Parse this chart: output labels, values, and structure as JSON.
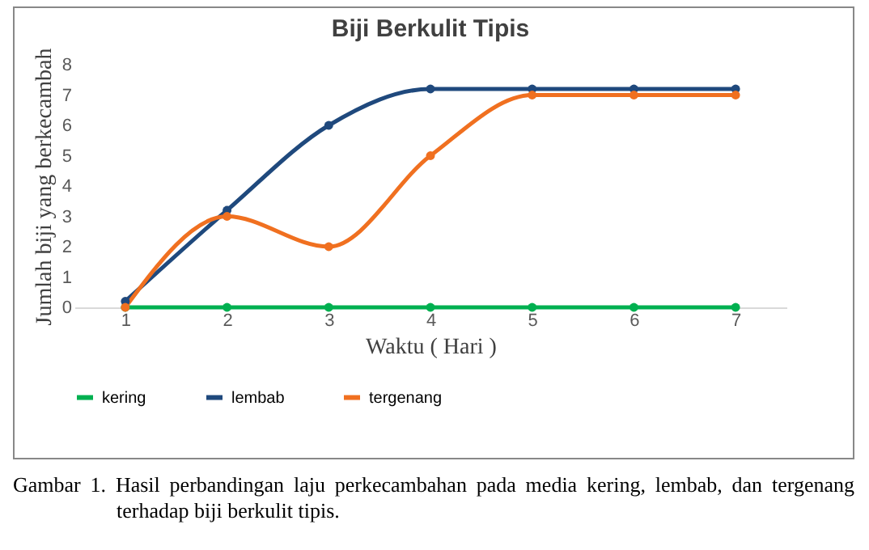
{
  "chart_data": {
    "type": "line",
    "title": "Biji Berkulit Tipis",
    "xlabel": "Waktu ( Hari )",
    "ylabel": "Jumlah biji yang berkecambah",
    "categories": [
      "1",
      "2",
      "3",
      "4",
      "5",
      "6",
      "7"
    ],
    "series": [
      {
        "name": "kering",
        "color": "#00b050",
        "values": [
          0,
          0,
          0,
          0,
          0,
          0,
          0
        ]
      },
      {
        "name": "lembab",
        "color": "#1f497d",
        "values": [
          0.2,
          3.2,
          6,
          7.2,
          7.2,
          7.2,
          7.2
        ]
      },
      {
        "name": "tergenang",
        "color": "#f07020",
        "values": [
          0,
          3,
          2,
          5,
          7,
          7,
          7
        ]
      }
    ],
    "ylim": [
      0,
      8
    ],
    "yticks": [
      0,
      1,
      2,
      3,
      4,
      5,
      6,
      7,
      8
    ],
    "grid": false,
    "legend": "bottom",
    "marker": "circle",
    "line_style": "solid",
    "annotations": [
      "Gambar 1. Hasil perbandingan laju perkecambahan pada media kering, lembab, dan tergenang terhadap biji berkulit tipis."
    ]
  }
}
